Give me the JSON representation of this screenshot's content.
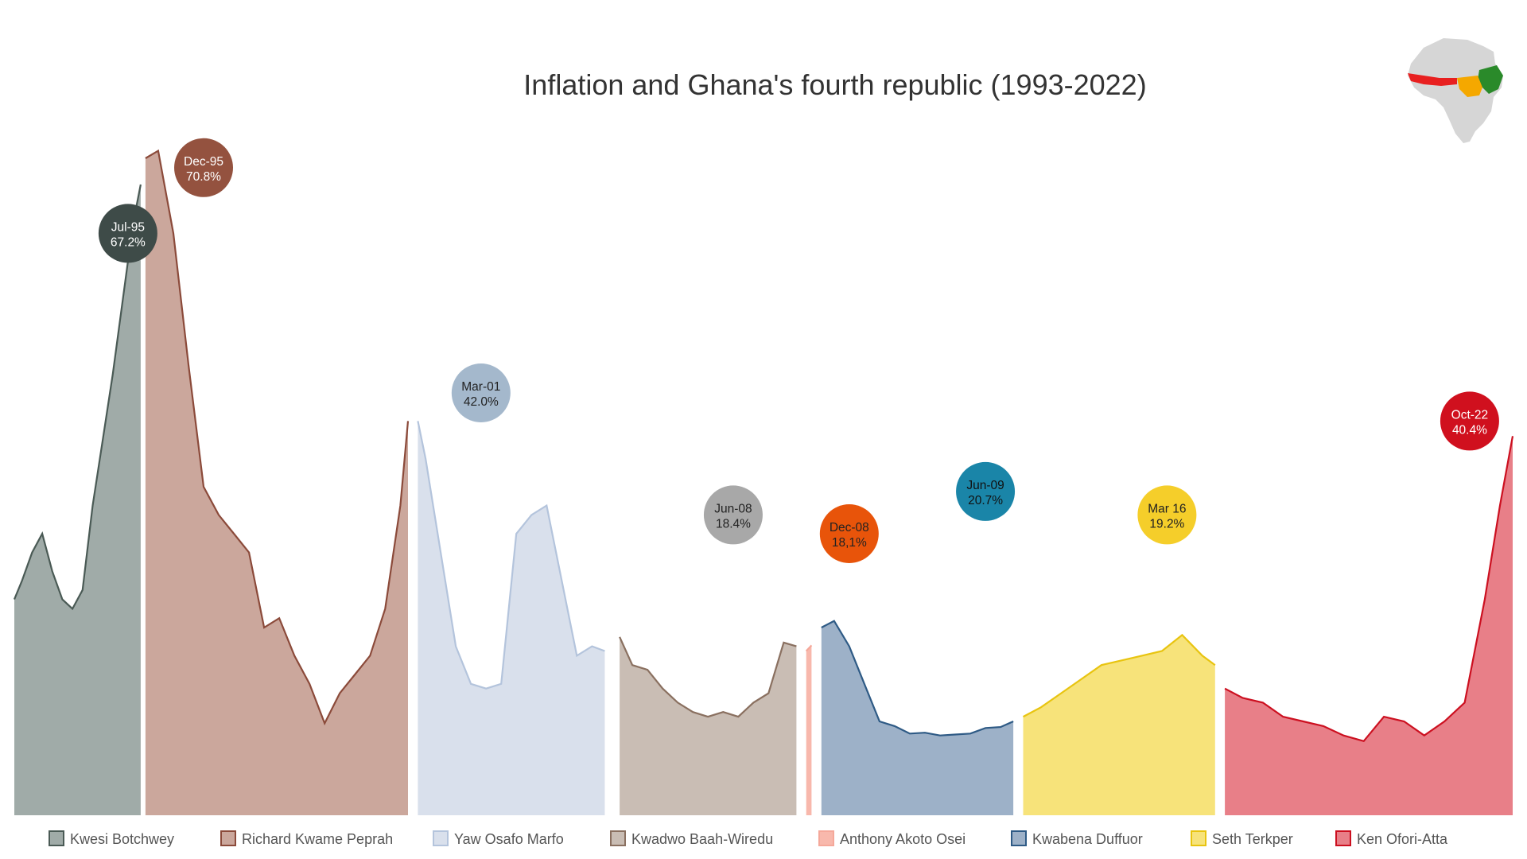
{
  "title": "Inflation and Ghana's fourth republic (1993-2022)",
  "chart_data": {
    "type": "area",
    "title": "Inflation and Ghana's fourth republic (1993-2022)",
    "xlabel": "",
    "ylabel": "",
    "ylim": [
      0,
      75
    ],
    "grid": false,
    "legend_position": "bottom",
    "series": [
      {
        "name": "Kwesi Botchwey",
        "color": "#4a5a55",
        "fill": "#a0aba8",
        "x": [
          1993.0,
          1993.2,
          1993.4,
          1993.6,
          1993.8,
          1994.0,
          1994.2,
          1994.4,
          1994.6,
          1994.8,
          1995.0,
          1995.2,
          1995.4,
          1995.6
        ],
        "values": [
          23.0,
          25.0,
          28.0,
          30.0,
          26.0,
          23.0,
          22.0,
          24.0,
          33.0,
          40.0,
          47.0,
          55.0,
          63.0,
          67.2
        ]
      },
      {
        "name": "Richard Kwame Peprah",
        "color": "#8b4a3a",
        "fill": "#cba79c",
        "x": [
          1995.6,
          1995.9,
          1996.2,
          1996.5,
          1996.8,
          1997.1,
          1997.4,
          1997.7,
          1998.0,
          1998.3,
          1998.6,
          1998.9,
          1999.2,
          1999.5,
          1999.8,
          2000.1,
          2000.4,
          2000.7,
          2000.9
        ],
        "values": [
          70.0,
          70.8,
          62.0,
          48.0,
          35.0,
          32.0,
          30.0,
          28.0,
          20.0,
          21.0,
          17.0,
          14.0,
          9.8,
          13.0,
          15.0,
          17.0,
          22.0,
          33.0,
          42.0
        ]
      },
      {
        "name": "Yaw Osafo Marfo",
        "color": "#b4c4dc",
        "fill": "#d9e0ec",
        "x": [
          2001.0,
          2001.2,
          2001.5,
          2001.8,
          2002.1,
          2002.4,
          2002.7,
          2003.0,
          2003.3,
          2003.6,
          2003.9,
          2004.2,
          2004.5,
          2004.8
        ],
        "values": [
          42.0,
          38.0,
          28.0,
          18.0,
          14.0,
          13.5,
          14.0,
          30.0,
          32.0,
          33.0,
          25.0,
          17.0,
          18.0,
          17.5
        ]
      },
      {
        "name": "Kwadwo Baah-Wiredu",
        "color": "#8a7060",
        "fill": "#c9bdb4",
        "x": [
          2005.0,
          2005.3,
          2005.6,
          2005.9,
          2006.2,
          2006.5,
          2006.8,
          2007.1,
          2007.4,
          2007.7,
          2008.0,
          2008.3,
          2008.6
        ],
        "values": [
          19.0,
          16.0,
          15.5,
          13.5,
          12.0,
          11.0,
          10.5,
          11.0,
          10.5,
          12.0,
          13.0,
          18.4,
          18.0
        ]
      },
      {
        "name": "Anthony Akoto Osei",
        "color": "#f5a89a",
        "fill": "#f8b8ac",
        "x": [
          2008.7,
          2008.9
        ],
        "values": [
          17.5,
          18.1
        ]
      },
      {
        "name": "Kwabena Duffuor",
        "color": "#2e5a85",
        "fill": "#9db1c8",
        "x": [
          2009.0,
          2009.3,
          2009.6,
          2009.9,
          2010.2,
          2010.5,
          2010.8,
          2011.1,
          2011.4,
          2011.7,
          2012.0,
          2012.3,
          2012.6,
          2012.9
        ],
        "values": [
          20.0,
          20.7,
          18.0,
          14.0,
          10.0,
          9.5,
          8.7,
          8.8,
          8.5,
          8.6,
          8.7,
          9.3,
          9.4,
          10.0
        ]
      },
      {
        "name": "Seth Terkper",
        "color": "#e8c410",
        "fill": "#f7e37a",
        "x": [
          2013.0,
          2013.4,
          2013.8,
          2014.2,
          2014.6,
          2015.0,
          2015.4,
          2015.8,
          2016.2,
          2016.6,
          2016.9
        ],
        "values": [
          10.5,
          11.5,
          13.0,
          14.5,
          16.0,
          16.5,
          17.0,
          17.5,
          19.2,
          17.0,
          16.0
        ]
      },
      {
        "name": "Ken Ofori-Atta",
        "color": "#cc1020",
        "fill": "#e87f88",
        "x": [
          2017.0,
          2017.4,
          2017.8,
          2018.2,
          2018.6,
          2019.0,
          2019.4,
          2019.8,
          2020.2,
          2020.6,
          2021.0,
          2021.4,
          2021.8,
          2022.2,
          2022.5,
          2022.8
        ],
        "values": [
          13.5,
          12.5,
          12.0,
          10.5,
          10.0,
          9.5,
          8.5,
          7.9,
          10.5,
          10.0,
          8.5,
          10.0,
          12.0,
          23.0,
          33.0,
          40.4
        ]
      }
    ],
    "annotations": [
      {
        "label": "Jul-95",
        "value": "67.2%",
        "x": 1995.3,
        "y": 62.0,
        "color": "#3e4b48",
        "text_color": "#ffffff"
      },
      {
        "label": "Dec-95",
        "value": "70.8%",
        "x": 1996.8,
        "y": 69.0,
        "color": "#94523f",
        "text_color": "#ffffff"
      },
      {
        "label": "Mar-01",
        "value": "42.0%",
        "x": 2002.3,
        "y": 45.0,
        "color": "#a4b8cc",
        "text_color": "#222222"
      },
      {
        "label": "Jun-08",
        "value": "18.4%",
        "x": 2007.3,
        "y": 32.0,
        "color": "#a8a8a8",
        "text_color": "#222222"
      },
      {
        "label": "Dec-08",
        "value": "18,1%",
        "x": 2009.6,
        "y": 30.0,
        "color": "#e8540a",
        "text_color": "#222222"
      },
      {
        "label": "Jun-09",
        "value": "20.7%",
        "x": 2012.3,
        "y": 34.5,
        "color": "#1a85a8",
        "text_color": "#111111"
      },
      {
        "label": "Mar 16",
        "value": "19.2%",
        "x": 2015.9,
        "y": 32.0,
        "color": "#f5ce2a",
        "text_color": "#222222"
      },
      {
        "label": "Oct-22",
        "value": "40.4%",
        "x": 2021.9,
        "y": 42.0,
        "color": "#d0101e",
        "text_color": "#ffffff"
      }
    ]
  },
  "map": {
    "base_color": "#d6d6d6",
    "west_color": "#e82020",
    "central_color": "#f5a800",
    "east_color": "#2a8a2a"
  }
}
